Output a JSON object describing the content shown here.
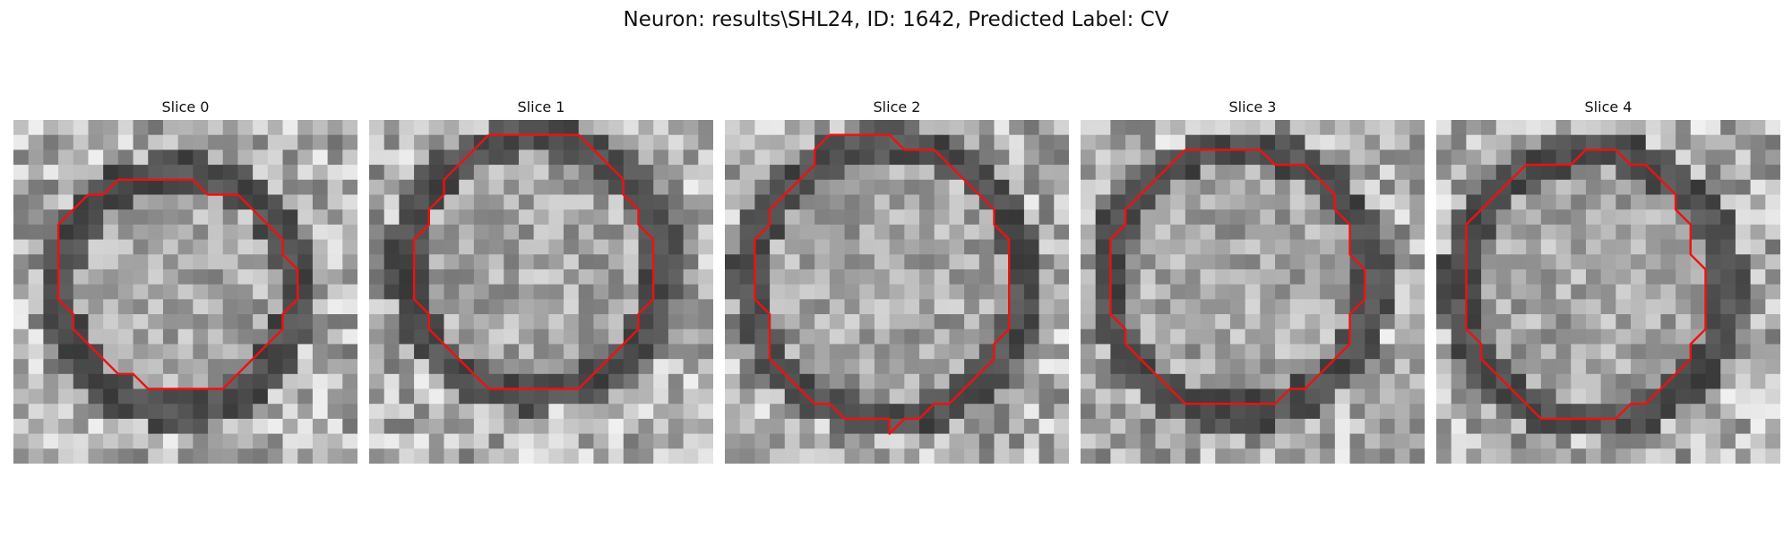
{
  "title": "Neuron: results\\SHL24, ID: 1642, Predicted Label: CV",
  "panels": [
    {
      "label": "Slice 0",
      "contour": [
        [
          8,
          4
        ],
        [
          12,
          4
        ],
        [
          13,
          5
        ],
        [
          15,
          5
        ],
        [
          16,
          6
        ],
        [
          17,
          7
        ],
        [
          18,
          8
        ],
        [
          18,
          9
        ],
        [
          19,
          10
        ],
        [
          19,
          12
        ],
        [
          18,
          13
        ],
        [
          18,
          14
        ],
        [
          17,
          15
        ],
        [
          16,
          16
        ],
        [
          15,
          17
        ],
        [
          14,
          18
        ],
        [
          11,
          18
        ],
        [
          9,
          18
        ],
        [
          8,
          17
        ],
        [
          7,
          17
        ],
        [
          6,
          16
        ],
        [
          5,
          15
        ],
        [
          4,
          14
        ],
        [
          4,
          13
        ],
        [
          3,
          12
        ],
        [
          3,
          11
        ],
        [
          3,
          9
        ],
        [
          3,
          7
        ],
        [
          4,
          6
        ],
        [
          5,
          5
        ],
        [
          6,
          5
        ],
        [
          7,
          4
        ],
        [
          8,
          4
        ]
      ]
    },
    {
      "label": "Slice 1",
      "contour": [
        [
          8,
          1
        ],
        [
          11,
          1
        ],
        [
          14,
          1
        ],
        [
          15,
          2
        ],
        [
          16,
          3
        ],
        [
          17,
          4
        ],
        [
          17,
          5
        ],
        [
          18,
          6
        ],
        [
          18,
          7
        ],
        [
          19,
          8
        ],
        [
          19,
          9
        ],
        [
          19,
          11
        ],
        [
          19,
          12
        ],
        [
          18,
          13
        ],
        [
          18,
          14
        ],
        [
          17,
          15
        ],
        [
          16,
          16
        ],
        [
          15,
          17
        ],
        [
          14,
          18
        ],
        [
          11,
          18
        ],
        [
          8,
          18
        ],
        [
          7,
          17
        ],
        [
          6,
          16
        ],
        [
          5,
          15
        ],
        [
          4,
          14
        ],
        [
          4,
          13
        ],
        [
          3,
          12
        ],
        [
          3,
          11
        ],
        [
          3,
          8
        ],
        [
          4,
          7
        ],
        [
          4,
          6
        ],
        [
          5,
          5
        ],
        [
          5,
          4
        ],
        [
          6,
          3
        ],
        [
          7,
          2
        ],
        [
          8,
          1
        ]
      ]
    },
    {
      "label": "Slice 2",
      "contour": [
        [
          7,
          1
        ],
        [
          11,
          1
        ],
        [
          12,
          2
        ],
        [
          14,
          2
        ],
        [
          15,
          3
        ],
        [
          16,
          4
        ],
        [
          17,
          5
        ],
        [
          18,
          6
        ],
        [
          18,
          7
        ],
        [
          19,
          8
        ],
        [
          19,
          9
        ],
        [
          19,
          11
        ],
        [
          19,
          12
        ],
        [
          19,
          14
        ],
        [
          18,
          15
        ],
        [
          18,
          16
        ],
        [
          17,
          17
        ],
        [
          16,
          18
        ],
        [
          15,
          19
        ],
        [
          14,
          19
        ],
        [
          13,
          20
        ],
        [
          12,
          20
        ],
        [
          11,
          21
        ],
        [
          11,
          20
        ],
        [
          9,
          20
        ],
        [
          8,
          20
        ],
        [
          7,
          19
        ],
        [
          6,
          19
        ],
        [
          5,
          18
        ],
        [
          4,
          17
        ],
        [
          3,
          16
        ],
        [
          3,
          15
        ],
        [
          3,
          13
        ],
        [
          2,
          12
        ],
        [
          2,
          10
        ],
        [
          2,
          8
        ],
        [
          3,
          7
        ],
        [
          3,
          6
        ],
        [
          4,
          5
        ],
        [
          5,
          4
        ],
        [
          6,
          3
        ],
        [
          6,
          2
        ],
        [
          7,
          1
        ]
      ]
    },
    {
      "label": "Slice 3",
      "contour": [
        [
          7,
          2
        ],
        [
          12,
          2
        ],
        [
          13,
          3
        ],
        [
          15,
          3
        ],
        [
          16,
          4
        ],
        [
          17,
          5
        ],
        [
          17,
          6
        ],
        [
          18,
          7
        ],
        [
          18,
          8
        ],
        [
          18,
          9
        ],
        [
          19,
          10
        ],
        [
          19,
          12
        ],
        [
          18,
          13
        ],
        [
          18,
          14
        ],
        [
          18,
          15
        ],
        [
          17,
          16
        ],
        [
          16,
          17
        ],
        [
          15,
          18
        ],
        [
          14,
          18
        ],
        [
          13,
          19
        ],
        [
          9,
          19
        ],
        [
          7,
          19
        ],
        [
          6,
          18
        ],
        [
          5,
          17
        ],
        [
          4,
          16
        ],
        [
          3,
          15
        ],
        [
          3,
          14
        ],
        [
          2,
          13
        ],
        [
          2,
          12
        ],
        [
          2,
          11
        ],
        [
          2,
          9
        ],
        [
          2,
          8
        ],
        [
          3,
          7
        ],
        [
          3,
          6
        ],
        [
          4,
          5
        ],
        [
          5,
          4
        ],
        [
          6,
          3
        ],
        [
          7,
          2
        ]
      ]
    },
    {
      "label": "Slice 4",
      "contour": [
        [
          6,
          3
        ],
        [
          9,
          3
        ],
        [
          10,
          2
        ],
        [
          12,
          2
        ],
        [
          13,
          3
        ],
        [
          14,
          3
        ],
        [
          15,
          4
        ],
        [
          16,
          5
        ],
        [
          16,
          6
        ],
        [
          17,
          7
        ],
        [
          17,
          8
        ],
        [
          17,
          9
        ],
        [
          18,
          10
        ],
        [
          18,
          12
        ],
        [
          18,
          14
        ],
        [
          17,
          15
        ],
        [
          17,
          16
        ],
        [
          16,
          17
        ],
        [
          15,
          18
        ],
        [
          14,
          19
        ],
        [
          13,
          19
        ],
        [
          12,
          20
        ],
        [
          10,
          20
        ],
        [
          9,
          20
        ],
        [
          7,
          20
        ],
        [
          6,
          19
        ],
        [
          5,
          18
        ],
        [
          4,
          17
        ],
        [
          3,
          16
        ],
        [
          3,
          15
        ],
        [
          2,
          14
        ],
        [
          2,
          13
        ],
        [
          2,
          12
        ],
        [
          2,
          8
        ],
        [
          2,
          7
        ],
        [
          3,
          6
        ],
        [
          4,
          5
        ],
        [
          5,
          4
        ],
        [
          6,
          3
        ]
      ]
    }
  ]
}
